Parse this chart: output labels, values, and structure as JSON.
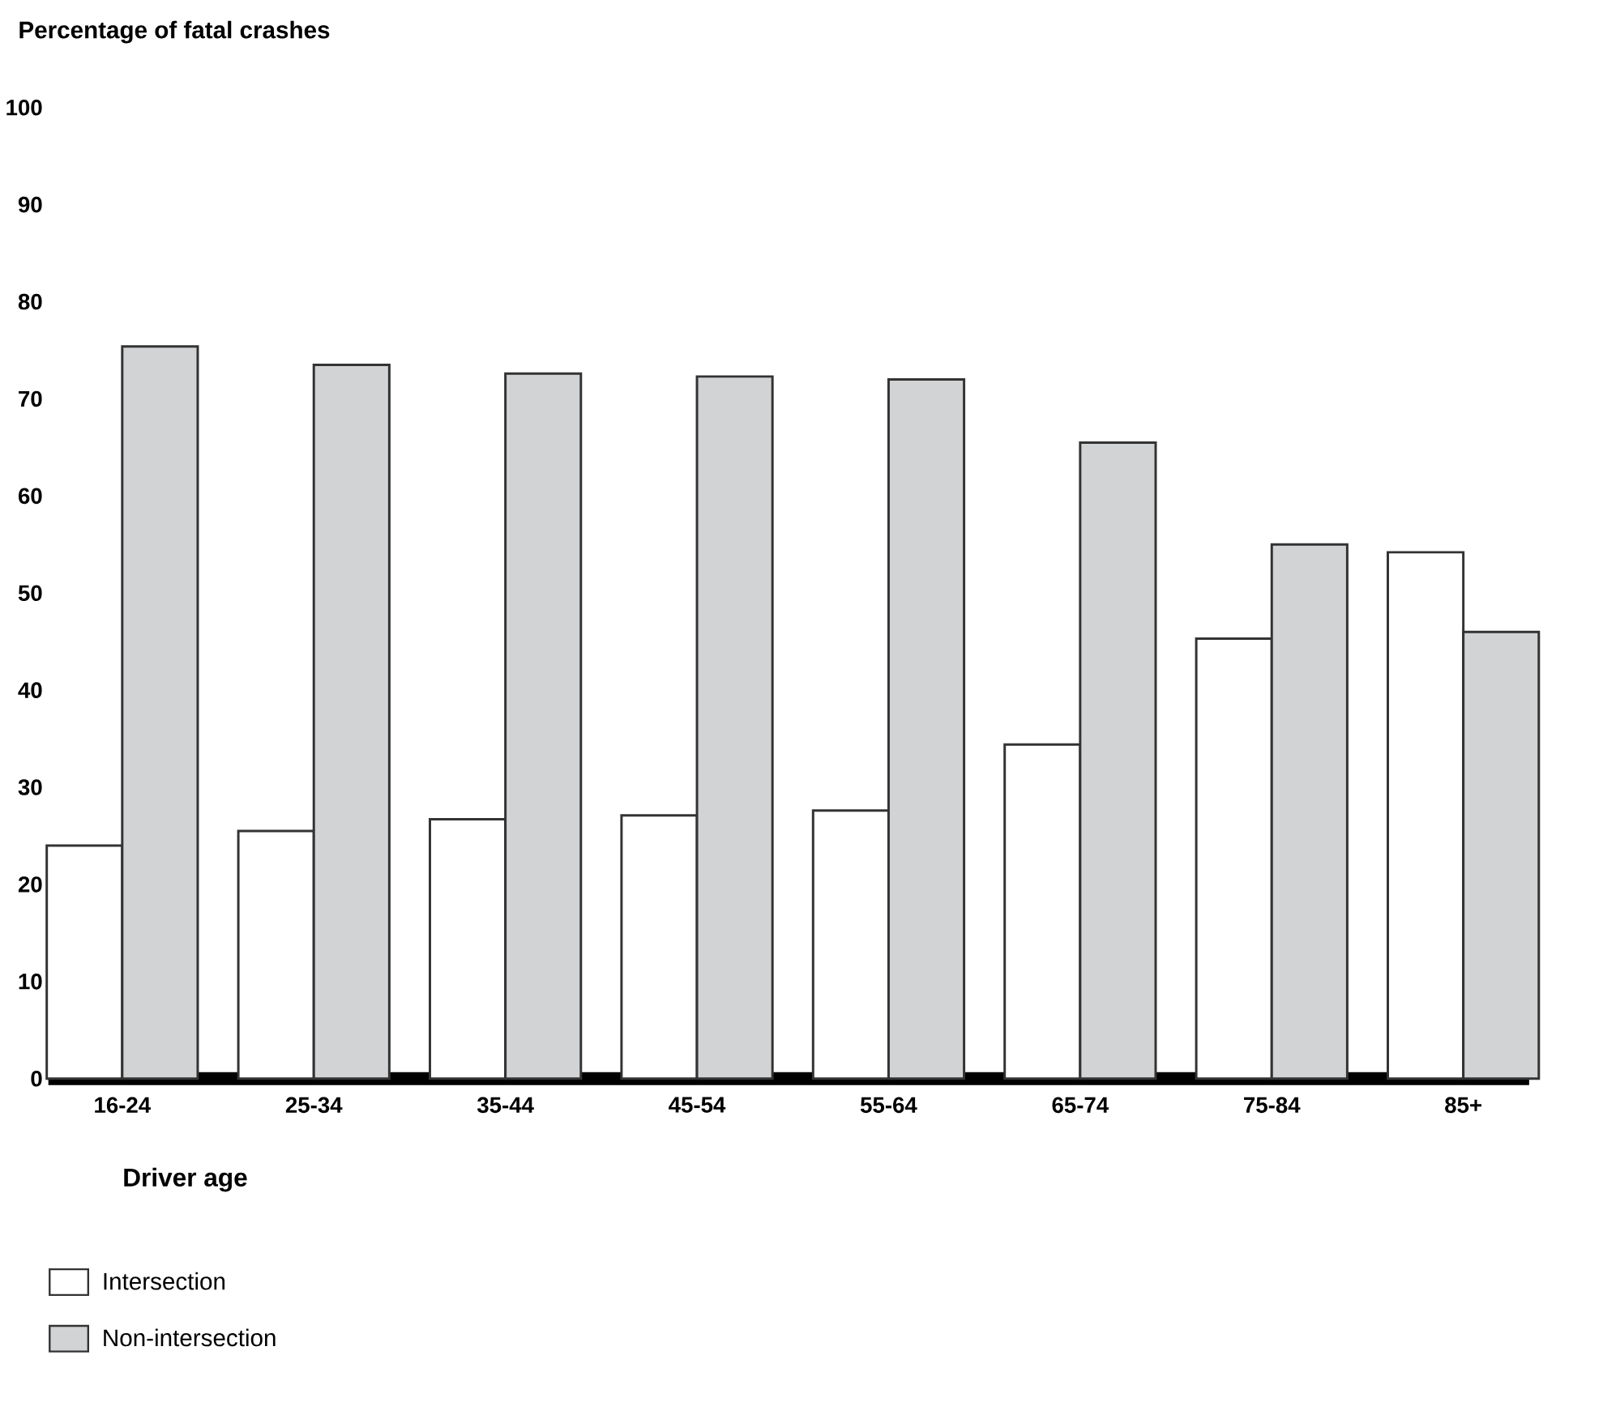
{
  "chart_data": {
    "type": "bar",
    "ylabel": "Percentage of fatal crashes",
    "xlabel": "Driver age",
    "categories": [
      "16-24",
      "25-34",
      "35-44",
      "45-54",
      "55-64",
      "65-74",
      "75-84",
      "85+"
    ],
    "series": [
      {
        "name": "Intersection",
        "color": "#ffffff",
        "values": [
          24.0,
          25.5,
          26.7,
          27.1,
          27.6,
          34.4,
          45.3,
          54.2
        ]
      },
      {
        "name": "Non-intersection",
        "color": "#d1d3d4",
        "values": [
          75.4,
          73.5,
          72.6,
          72.3,
          72.0,
          65.5,
          55.0,
          46.0
        ]
      }
    ],
    "ylim": [
      0,
      100
    ],
    "yticks": [
      0,
      10,
      20,
      30,
      40,
      50,
      60,
      70,
      80,
      90,
      100
    ],
    "legend": "bottom left"
  }
}
